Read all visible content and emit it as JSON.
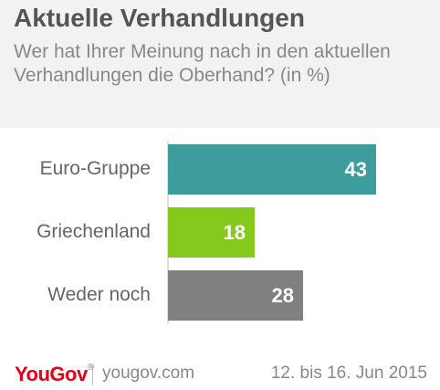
{
  "header": {
    "title": "Aktuelle Verhandlungen",
    "subtitle": "Wer hat Ihrer Meinung nach in den aktuellen Verhandlungen die Oberhand? (in %)"
  },
  "chart_data": {
    "type": "bar",
    "orientation": "horizontal",
    "categories": [
      "Euro-Gruppe",
      "Griechenland",
      "Weder noch"
    ],
    "values": [
      43,
      18,
      28
    ],
    "colors": [
      "#3f9c9d",
      "#84c91c",
      "#808080"
    ],
    "title": "Aktuelle Verhandlungen",
    "subtitle": "Wer hat Ihrer Meinung nach in den aktuellen Verhandlungen die Oberhand? (in %)",
    "xlim": [
      0,
      50
    ],
    "grid": false,
    "legend": "none"
  },
  "footer": {
    "logo_you": "You",
    "logo_gov": "Gov",
    "logo_mark": "®",
    "site": "yougov.com",
    "date": "12. bis 16. Jun 2015"
  }
}
